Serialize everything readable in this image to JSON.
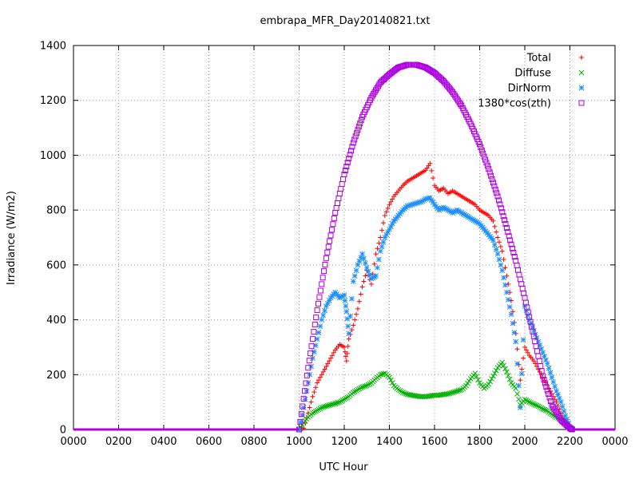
{
  "chart_data": {
    "type": "scatter",
    "title": "embrapa_MFR_Day20140821.txt",
    "xlabel": "UTC Hour",
    "ylabel": "Irradiance (W/m2)",
    "xlim": [
      0,
      24
    ],
    "ylim": [
      0,
      1400
    ],
    "x_ticks": [
      0,
      2,
      4,
      6,
      8,
      10,
      12,
      14,
      16,
      18,
      20,
      22,
      24
    ],
    "x_tick_labels": [
      "0000",
      "0200",
      "0400",
      "0600",
      "0800",
      "1000",
      "1200",
      "1400",
      "1600",
      "1800",
      "2000",
      "2200",
      "0000"
    ],
    "y_ticks": [
      0,
      200,
      400,
      600,
      800,
      1000,
      1200,
      1400
    ],
    "grid": true,
    "legend_position": "top-right",
    "series": [
      {
        "name": "Total",
        "color": "#ff0000",
        "marker": "plus",
        "points": [
          [
            10.0,
            0
          ],
          [
            10.2,
            5
          ],
          [
            10.4,
            60
          ],
          [
            10.6,
            120
          ],
          [
            10.8,
            170
          ],
          [
            11.0,
            200
          ],
          [
            11.2,
            230
          ],
          [
            11.4,
            260
          ],
          [
            11.6,
            290
          ],
          [
            11.8,
            310
          ],
          [
            12.0,
            300
          ],
          [
            12.1,
            250
          ],
          [
            12.2,
            330
          ],
          [
            12.4,
            380
          ],
          [
            12.6,
            440
          ],
          [
            12.8,
            520
          ],
          [
            13.0,
            580
          ],
          [
            13.2,
            530
          ],
          [
            13.4,
            640
          ],
          [
            13.6,
            700
          ],
          [
            13.8,
            780
          ],
          [
            14.0,
            820
          ],
          [
            14.2,
            850
          ],
          [
            14.4,
            870
          ],
          [
            14.6,
            890
          ],
          [
            14.8,
            905
          ],
          [
            15.0,
            915
          ],
          [
            15.2,
            925
          ],
          [
            15.4,
            935
          ],
          [
            15.6,
            945
          ],
          [
            15.8,
            970
          ],
          [
            16.0,
            890
          ],
          [
            16.2,
            870
          ],
          [
            16.4,
            880
          ],
          [
            16.6,
            860
          ],
          [
            16.8,
            870
          ],
          [
            17.0,
            860
          ],
          [
            17.2,
            850
          ],
          [
            17.4,
            840
          ],
          [
            17.6,
            830
          ],
          [
            17.8,
            820
          ],
          [
            18.0,
            800
          ],
          [
            18.2,
            790
          ],
          [
            18.4,
            780
          ],
          [
            18.6,
            760
          ],
          [
            18.8,
            700
          ],
          [
            19.0,
            650
          ],
          [
            19.2,
            560
          ],
          [
            19.4,
            470
          ],
          [
            19.6,
            350
          ],
          [
            19.8,
            180
          ],
          [
            20.0,
            300
          ],
          [
            20.2,
            270
          ],
          [
            20.4,
            250
          ],
          [
            20.6,
            220
          ],
          [
            20.8,
            190
          ],
          [
            21.0,
            160
          ],
          [
            21.2,
            130
          ],
          [
            21.4,
            100
          ],
          [
            21.6,
            60
          ],
          [
            21.8,
            30
          ],
          [
            22.0,
            5
          ],
          [
            22.1,
            0
          ]
        ]
      },
      {
        "name": "Diffuse",
        "color": "#00b000",
        "marker": "cross",
        "points": [
          [
            10.0,
            0
          ],
          [
            10.2,
            25
          ],
          [
            10.4,
            45
          ],
          [
            10.6,
            60
          ],
          [
            10.8,
            70
          ],
          [
            11.0,
            80
          ],
          [
            11.2,
            85
          ],
          [
            11.4,
            90
          ],
          [
            11.6,
            95
          ],
          [
            11.8,
            100
          ],
          [
            12.0,
            110
          ],
          [
            12.2,
            120
          ],
          [
            12.4,
            135
          ],
          [
            12.6,
            145
          ],
          [
            12.8,
            155
          ],
          [
            13.0,
            160
          ],
          [
            13.2,
            170
          ],
          [
            13.4,
            185
          ],
          [
            13.6,
            200
          ],
          [
            13.8,
            205
          ],
          [
            14.0,
            190
          ],
          [
            14.2,
            160
          ],
          [
            14.4,
            145
          ],
          [
            14.6,
            135
          ],
          [
            14.8,
            128
          ],
          [
            15.0,
            125
          ],
          [
            15.2,
            122
          ],
          [
            15.4,
            120
          ],
          [
            15.6,
            120
          ],
          [
            15.8,
            122
          ],
          [
            16.0,
            125
          ],
          [
            16.2,
            125
          ],
          [
            16.4,
            128
          ],
          [
            16.6,
            130
          ],
          [
            16.8,
            135
          ],
          [
            17.0,
            140
          ],
          [
            17.2,
            145
          ],
          [
            17.4,
            160
          ],
          [
            17.6,
            185
          ],
          [
            17.8,
            205
          ],
          [
            18.0,
            170
          ],
          [
            18.2,
            150
          ],
          [
            18.4,
            165
          ],
          [
            18.6,
            195
          ],
          [
            18.8,
            225
          ],
          [
            19.0,
            245
          ],
          [
            19.2,
            210
          ],
          [
            19.4,
            170
          ],
          [
            19.6,
            150
          ],
          [
            19.8,
            90
          ],
          [
            20.0,
            110
          ],
          [
            20.2,
            100
          ],
          [
            20.4,
            92
          ],
          [
            20.6,
            85
          ],
          [
            20.8,
            75
          ],
          [
            21.0,
            68
          ],
          [
            21.2,
            55
          ],
          [
            21.4,
            45
          ],
          [
            21.6,
            35
          ],
          [
            21.8,
            20
          ],
          [
            22.0,
            5
          ],
          [
            22.1,
            0
          ]
        ]
      },
      {
        "name": "DirNorm",
        "color": "#1e90ff",
        "marker": "star",
        "points": [
          [
            10.0,
            0
          ],
          [
            10.2,
            80
          ],
          [
            10.4,
            170
          ],
          [
            10.6,
            260
          ],
          [
            10.8,
            330
          ],
          [
            11.0,
            400
          ],
          [
            11.2,
            450
          ],
          [
            11.4,
            480
          ],
          [
            11.6,
            500
          ],
          [
            11.8,
            480
          ],
          [
            12.0,
            490
          ],
          [
            12.1,
            430
          ],
          [
            12.2,
            350
          ],
          [
            12.4,
            540
          ],
          [
            12.6,
            600
          ],
          [
            12.8,
            640
          ],
          [
            13.0,
            590
          ],
          [
            13.2,
            550
          ],
          [
            13.4,
            560
          ],
          [
            13.6,
            650
          ],
          [
            13.8,
            700
          ],
          [
            14.0,
            730
          ],
          [
            14.2,
            760
          ],
          [
            14.4,
            780
          ],
          [
            14.6,
            800
          ],
          [
            14.8,
            815
          ],
          [
            15.0,
            820
          ],
          [
            15.2,
            825
          ],
          [
            15.4,
            830
          ],
          [
            15.6,
            840
          ],
          [
            15.8,
            845
          ],
          [
            16.0,
            820
          ],
          [
            16.2,
            800
          ],
          [
            16.4,
            810
          ],
          [
            16.6,
            800
          ],
          [
            16.8,
            790
          ],
          [
            17.0,
            800
          ],
          [
            17.2,
            790
          ],
          [
            17.4,
            780
          ],
          [
            17.6,
            770
          ],
          [
            17.8,
            760
          ],
          [
            18.0,
            750
          ],
          [
            18.2,
            730
          ],
          [
            18.4,
            710
          ],
          [
            18.6,
            690
          ],
          [
            18.8,
            640
          ],
          [
            19.0,
            580
          ],
          [
            19.2,
            500
          ],
          [
            19.4,
            420
          ],
          [
            19.6,
            320
          ],
          [
            19.8,
            80
          ],
          [
            20.0,
            450
          ],
          [
            20.2,
            400
          ],
          [
            20.4,
            360
          ],
          [
            20.6,
            320
          ],
          [
            20.8,
            280
          ],
          [
            21.0,
            240
          ],
          [
            21.2,
            190
          ],
          [
            21.4,
            140
          ],
          [
            21.6,
            100
          ],
          [
            21.8,
            50
          ],
          [
            22.0,
            10
          ],
          [
            22.1,
            0
          ]
        ]
      },
      {
        "name": "1380*cos(zth)",
        "color": "#b000e0",
        "marker": "square",
        "points": [
          [
            10.0,
            0
          ],
          [
            10.4,
            225
          ],
          [
            10.8,
            435
          ],
          [
            11.2,
            625
          ],
          [
            11.6,
            790
          ],
          [
            12.0,
            930
          ],
          [
            12.4,
            1045
          ],
          [
            12.8,
            1140
          ],
          [
            13.2,
            1210
          ],
          [
            13.6,
            1265
          ],
          [
            14.0,
            1295
          ],
          [
            14.4,
            1320
          ],
          [
            14.8,
            1330
          ],
          [
            15.2,
            1330
          ],
          [
            15.6,
            1320
          ],
          [
            16.0,
            1300
          ],
          [
            16.4,
            1270
          ],
          [
            16.8,
            1230
          ],
          [
            17.2,
            1180
          ],
          [
            17.6,
            1115
          ],
          [
            18.0,
            1040
          ],
          [
            18.4,
            950
          ],
          [
            18.8,
            850
          ],
          [
            19.2,
            735
          ],
          [
            19.6,
            615
          ],
          [
            20.0,
            480
          ],
          [
            20.4,
            340
          ],
          [
            20.8,
            195
          ],
          [
            21.2,
            90
          ],
          [
            21.6,
            35
          ],
          [
            22.0,
            5
          ],
          [
            22.1,
            0
          ]
        ]
      }
    ]
  }
}
